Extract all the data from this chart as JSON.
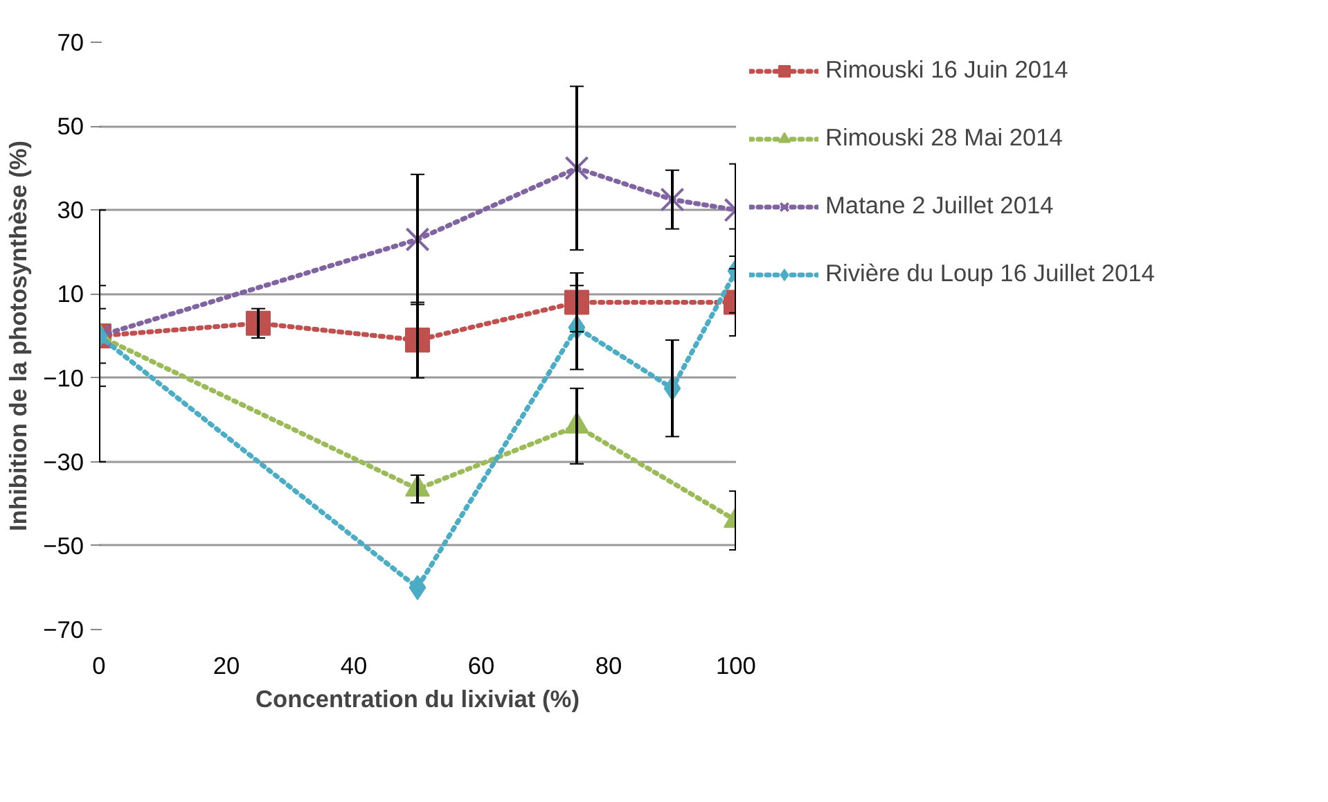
{
  "chart_data": {
    "type": "line",
    "xlabel": "Concentration du lixiviat (%)",
    "ylabel": "Inhibition de la photosynthèse (%)",
    "xlim": [
      0,
      100
    ],
    "xticks": [
      0,
      20,
      40,
      60,
      80,
      100
    ],
    "ylim": [
      -70,
      70
    ],
    "yticks": [
      -70,
      -50,
      -30,
      -10,
      10,
      30,
      50,
      70
    ],
    "grid": "y",
    "legend": "right",
    "line_style": "dotted",
    "series": [
      {
        "name": "Rimouski 16 Juin 2014",
        "color": "#c0504d",
        "marker": "square",
        "x": [
          0,
          25,
          50,
          75,
          100
        ],
        "values": [
          0,
          3,
          -1,
          8,
          8
        ],
        "errors": [
          6.5,
          3.5,
          9,
          7,
          8
        ]
      },
      {
        "name": "Rimouski 28 Mai 2014",
        "color": "#9bbb59",
        "marker": "triangle",
        "x": [
          0,
          50,
          75,
          100
        ],
        "values": [
          0,
          -36.5,
          -21.5,
          -44
        ],
        "errors": [
          12,
          3.3,
          9,
          7
        ]
      },
      {
        "name": "Matane 2 Juillet 2014",
        "color": "#8064a2",
        "marker": "x",
        "x": [
          0,
          50,
          75,
          90,
          100
        ],
        "values": [
          0,
          23,
          40,
          32.5,
          30
        ],
        "errors": [
          null,
          15.5,
          19.5,
          7,
          11
        ]
      },
      {
        "name": "Rivière du Loup 16 Juillet 2014",
        "color": "#4bacc6",
        "marker": "diamond",
        "x": [
          0,
          50,
          75,
          90,
          100
        ],
        "values": [
          0,
          -60,
          2,
          -12.5,
          15.5
        ],
        "errors": [
          30,
          null,
          10,
          11.5,
          10
        ]
      }
    ]
  }
}
